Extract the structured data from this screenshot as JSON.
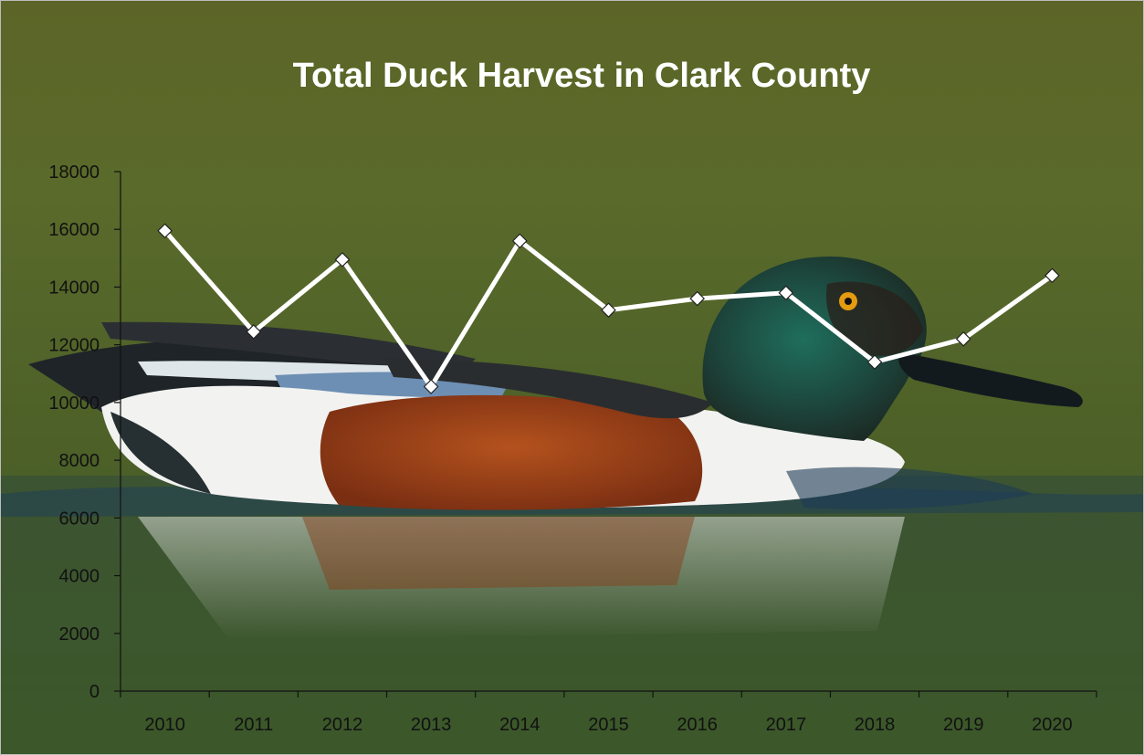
{
  "chart_data": {
    "type": "line",
    "title": "Total Duck Harvest in Clark County",
    "xlabel": "",
    "ylabel": "",
    "categories": [
      "2010",
      "2011",
      "2012",
      "2013",
      "2014",
      "2015",
      "2016",
      "2017",
      "2018",
      "2019",
      "2020"
    ],
    "series": [
      {
        "values": [
          15950,
          12450,
          14950,
          10550,
          15600,
          13200,
          13600,
          13800,
          11400,
          12200,
          14400
        ]
      }
    ],
    "ylim": [
      0,
      18000
    ],
    "yticks": [
      0,
      2000,
      4000,
      6000,
      8000,
      10000,
      12000,
      14000,
      16000,
      18000
    ],
    "grid": false,
    "legend": "none",
    "background": "photograph of a northern shoveler duck on water",
    "colors": {
      "line": "#ffffff",
      "marker_fill": "#ffffff",
      "marker_edge": "#222222",
      "text": "#111111",
      "title": "#ffffff"
    }
  }
}
